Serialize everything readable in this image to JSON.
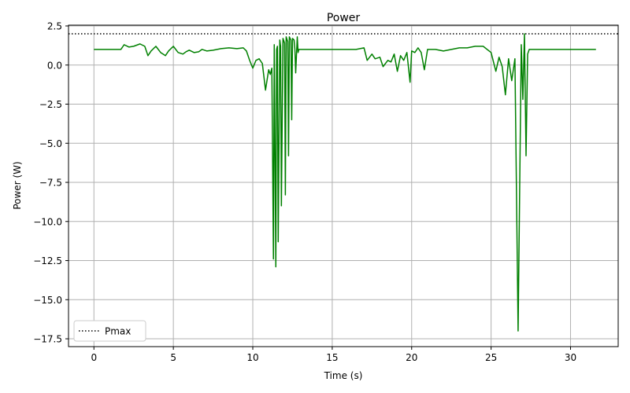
{
  "chart_data": {
    "type": "line",
    "title": "Power",
    "xlabel": "Time (s)",
    "ylabel": "Power (W)",
    "xlim": [
      -1.6,
      33.0
    ],
    "ylim": [
      -18.0,
      2.55
    ],
    "x_ticks": [
      0,
      5,
      10,
      15,
      20,
      25,
      30
    ],
    "y_ticks": [
      2.5,
      0.0,
      -2.5,
      -5.0,
      -7.5,
      -10.0,
      -12.5,
      -15.0,
      -17.5
    ],
    "y_tick_labels": [
      "2.5",
      "0.0",
      "−2.5",
      "−5.0",
      "−7.5",
      "−10.0",
      "−12.5",
      "−15.0",
      "−17.5"
    ],
    "grid": true,
    "legend": {
      "placement": "lower-left",
      "entries": [
        {
          "label": "Pmax",
          "style": "dotted",
          "color": "#000000"
        }
      ]
    },
    "series": [
      {
        "color": "#008000",
        "x": [
          0,
          1.7,
          1.9,
          2.2,
          2.5,
          2.9,
          3.2,
          3.4,
          3.6,
          3.9,
          4.2,
          4.5,
          4.7,
          5.0,
          5.3,
          5.6,
          5.8,
          6.0,
          6.3,
          6.6,
          6.8,
          7.1,
          7.5,
          8.0,
          8.5,
          9.0,
          9.4,
          9.6,
          9.8,
          10.0,
          10.2,
          10.4,
          10.6,
          10.8,
          11.0,
          11.1,
          11.2,
          11.3,
          11.35,
          11.45,
          11.5,
          11.55,
          11.6,
          11.7,
          11.75,
          11.8,
          11.9,
          12.0,
          12.05,
          12.1,
          12.2,
          12.25,
          12.3,
          12.4,
          12.45,
          12.5,
          12.6,
          12.65,
          12.7,
          12.8,
          12.85,
          12.9,
          13.0,
          13.05,
          13.1,
          13.2,
          13.25,
          13.3,
          13.4,
          13.45,
          13.5,
          13.6,
          13.65,
          13.7,
          14.0,
          14.5,
          15.0,
          15.5,
          16.0,
          16.5,
          17.0,
          17.2,
          17.5,
          17.7,
          18.0,
          18.2,
          18.5,
          18.7,
          18.9,
          19.1,
          19.3,
          19.5,
          19.7,
          19.9,
          20.0,
          20.2,
          20.4,
          20.6,
          20.8,
          21.0,
          21.5,
          22.0,
          22.5,
          23.0,
          23.5,
          24.0,
          24.5,
          25.0,
          25.3,
          25.5,
          25.7,
          25.9,
          26.1,
          26.3,
          26.5,
          26.7,
          26.9,
          27.0,
          27.1,
          27.2,
          27.3,
          27.4,
          27.45,
          27.5,
          27.6,
          27.7,
          27.8,
          28.0,
          28.5,
          29.0,
          30.0,
          31.0,
          31.6
        ],
        "y": [
          1.0,
          1.0,
          1.3,
          1.15,
          1.2,
          1.35,
          1.2,
          0.6,
          0.9,
          1.2,
          0.8,
          0.6,
          0.9,
          1.2,
          0.8,
          0.7,
          0.85,
          0.95,
          0.8,
          0.85,
          1.0,
          0.9,
          0.95,
          1.05,
          1.1,
          1.05,
          1.1,
          0.9,
          0.3,
          -0.2,
          0.3,
          0.4,
          0.1,
          -1.6,
          -0.3,
          -0.6,
          -0.2,
          -12.4,
          1.3,
          -12.9,
          1.0,
          1.2,
          -11.3,
          1.6,
          1.2,
          -9.0,
          1.7,
          1.4,
          -8.3,
          1.8,
          1.5,
          -5.8,
          1.8,
          1.6,
          -3.5,
          1.7,
          1.6,
          1.0,
          -0.5,
          1.8,
          0.8,
          1.0,
          1.0,
          1.0,
          1.0,
          1.0,
          1.0,
          1.0,
          1.0,
          1.0,
          1.0,
          1.0,
          1.0,
          1.0,
          1.0,
          1.0,
          1.0,
          1.0,
          1.0,
          1.0,
          1.1,
          0.3,
          0.7,
          0.4,
          0.5,
          -0.1,
          0.3,
          0.2,
          0.7,
          -0.4,
          0.6,
          0.3,
          0.8,
          -1.1,
          0.9,
          0.8,
          1.1,
          0.8,
          -0.3,
          1.0,
          1.0,
          0.9,
          1.0,
          1.1,
          1.1,
          1.2,
          1.2,
          0.8,
          -0.4,
          0.5,
          -0.1,
          -1.9,
          0.4,
          -1.0,
          0.4,
          -17.0,
          1.3,
          -2.2,
          2.0,
          -5.8,
          0.7,
          1.0,
          1.0,
          1.0,
          1.0,
          1.0,
          1.0,
          1.0,
          1.0,
          1.0,
          1.0,
          1.0,
          1.0
        ]
      }
    ],
    "reference_lines": [
      {
        "label": "Pmax",
        "y": 2.0,
        "style": "dotted",
        "color": "#000000"
      }
    ]
  }
}
